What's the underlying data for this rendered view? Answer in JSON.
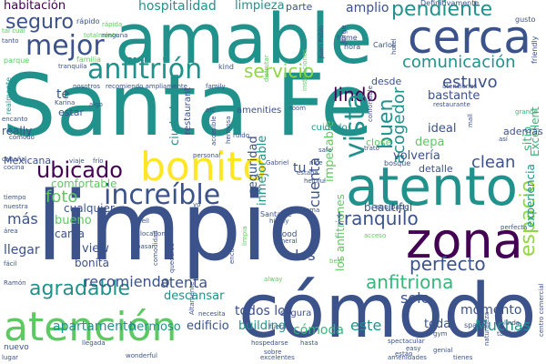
{
  "palette": {
    "dark_purple": "#440154",
    "indigo": "#3b528b",
    "blue": "#31688e",
    "teal": "#21918c",
    "green": "#35b779",
    "light_green": "#5ec962",
    "lime": "#90d743",
    "yellow": "#fde725"
  },
  "words": [
    {
      "text": "Santa Fe",
      "color": "teal"
    },
    {
      "text": "limpio",
      "color": "indigo"
    },
    {
      "text": "amable",
      "color": "teal"
    },
    {
      "text": "cómodo",
      "color": "indigo"
    },
    {
      "text": "cerca",
      "color": "indigo"
    },
    {
      "text": "zona",
      "color": "dark_purple"
    },
    {
      "text": "atento",
      "color": "teal"
    },
    {
      "text": "bonito",
      "color": "yellow"
    },
    {
      "text": "atención",
      "color": "light_green"
    },
    {
      "text": "increíble",
      "color": "indigo"
    },
    {
      "text": "mejor",
      "color": "indigo"
    },
    {
      "text": "anfitrión",
      "color": "teal"
    },
    {
      "text": "ubicado",
      "color": "dark_purple"
    },
    {
      "text": "seguro",
      "color": "indigo"
    },
    {
      "text": "pendiente",
      "color": "teal"
    },
    {
      "text": "comunicación",
      "color": "teal"
    },
    {
      "text": "servicio",
      "color": "lime"
    },
    {
      "text": "lindo",
      "color": "dark_purple"
    },
    {
      "text": "estuvo",
      "color": "indigo"
    },
    {
      "text": "vista",
      "color": "teal"
    },
    {
      "text": "buen",
      "color": "teal"
    },
    {
      "text": "acogedor",
      "color": "teal"
    },
    {
      "text": "espacio",
      "color": "lime"
    },
    {
      "text": "tranquilo",
      "color": "indigo"
    },
    {
      "text": "perfecto",
      "color": "indigo"
    },
    {
      "text": "anfitriona",
      "color": "green"
    },
    {
      "text": "agradable",
      "color": "teal"
    },
    {
      "text": "recomiendo",
      "color": "indigo"
    },
    {
      "text": "foto",
      "color": "light_green"
    },
    {
      "text": "más",
      "color": "indigo"
    },
    {
      "text": "llegar",
      "color": "indigo"
    },
    {
      "text": "solo",
      "color": "indigo"
    },
    {
      "text": "los",
      "color": "indigo"
    },
    {
      "text": "clean",
      "color": "indigo"
    },
    {
      "text": "momento",
      "color": "indigo"
    },
    {
      "text": "todos los",
      "color": "indigo"
    },
    {
      "text": "atenta",
      "color": "indigo"
    },
    {
      "text": "apartamento",
      "color": "teal"
    },
    {
      "text": "hermoso",
      "color": "teal"
    },
    {
      "text": "edificio",
      "color": "indigo"
    },
    {
      "text": "building",
      "color": "teal"
    },
    {
      "text": "cómoda",
      "color": "green"
    },
    {
      "text": "este",
      "color": "teal"
    },
    {
      "text": "toda",
      "color": "indigo"
    },
    {
      "text": "Muchas",
      "color": "teal"
    },
    {
      "text": "habitación",
      "color": "dark_purple"
    },
    {
      "text": "hospitalidad",
      "color": "teal"
    },
    {
      "text": "limpieza",
      "color": "teal"
    },
    {
      "text": "parte",
      "color": "indigo"
    },
    {
      "text": "amplio",
      "color": "indigo"
    },
    {
      "text": "ciudad",
      "color": "teal"
    },
    {
      "text": "seguridad",
      "color": "indigo"
    },
    {
      "text": "inmejorable",
      "color": "teal"
    },
    {
      "text": "cuenta",
      "color": "indigo"
    },
    {
      "text": "impecable",
      "color": "light_green"
    },
    {
      "text": "bastante",
      "color": "indigo"
    },
    {
      "text": "ideal",
      "color": "indigo"
    },
    {
      "text": "depa",
      "color": "light_green"
    },
    {
      "text": "volvería",
      "color": "indigo"
    },
    {
      "text": "detalle",
      "color": "indigo"
    },
    {
      "text": "experiencia",
      "color": "teal"
    },
    {
      "text": "Excellent",
      "color": "green"
    },
    {
      "text": "bueno",
      "color": "light_green"
    },
    {
      "text": "cama",
      "color": "indigo"
    },
    {
      "text": "view",
      "color": "indigo"
    },
    {
      "text": "bonita",
      "color": "indigo"
    },
    {
      "text": "descansar",
      "color": "teal"
    },
    {
      "text": "comfortable",
      "color": "light_green"
    },
    {
      "text": "cualquier",
      "color": "indigo"
    },
    {
      "text": "beautiful",
      "color": "indigo"
    },
    {
      "text": "los anfitriones",
      "color": "light_green"
    },
    {
      "text": "tu",
      "color": "indigo"
    },
    {
      "text": "te",
      "color": "indigo"
    },
    {
      "text": "sitio",
      "color": "green"
    },
    {
      "text": "desde",
      "color": "indigo"
    },
    {
      "text": "estar",
      "color": "indigo"
    },
    {
      "text": "restaurant",
      "color": "indigo"
    },
    {
      "text": "amenities",
      "color": "indigo"
    },
    {
      "text": "Mexicana",
      "color": "indigo"
    },
    {
      "text": "realmente",
      "color": "teal"
    },
    {
      "text": "really",
      "color": "indigo"
    },
    {
      "text": "además",
      "color": "indigo"
    },
    {
      "text": "close",
      "color": "light_green"
    },
    {
      "text": "cuidado",
      "color": "teal"
    },
    {
      "text": "segura",
      "color": "indigo"
    },
    {
      "text": "space",
      "color": "indigo"
    },
    {
      "text": "Santa Fé",
      "color": "indigo"
    },
    {
      "text": "good",
      "color": "indigo"
    },
    {
      "text": "equipado",
      "color": "indigo"
    },
    {
      "text": "Definitivamente",
      "color": "indigo"
    },
    {
      "text": "gusto",
      "color": "indigo"
    },
    {
      "text": "friendly",
      "color": "indigo"
    },
    {
      "text": "rápido",
      "color": "indigo"
    },
    {
      "text": "totalmente",
      "color": "light_green"
    },
    {
      "text": "Juan Pablo",
      "color": "indigo"
    },
    {
      "text": "Jorge",
      "color": "indigo"
    },
    {
      "text": "Carlos",
      "color": "indigo"
    },
    {
      "text": "home",
      "color": "indigo"
    },
    {
      "text": "hora",
      "color": "indigo"
    },
    {
      "text": "hotel",
      "color": "indigo"
    },
    {
      "text": "tanto",
      "color": "indigo"
    },
    {
      "text": "parque",
      "color": "light_green"
    },
    {
      "text": "familia",
      "color": "light_green"
    },
    {
      "text": "tranquila",
      "color": "indigo"
    },
    {
      "text": "kind",
      "color": "indigo"
    },
    {
      "text": "family",
      "color": "indigo"
    },
    {
      "text": "room",
      "color": "indigo"
    },
    {
      "text": "atenciones",
      "color": "indigo"
    },
    {
      "text": "restaurante",
      "color": "indigo"
    },
    {
      "text": "grande",
      "color": "green"
    },
    {
      "text": "Karina",
      "color": "indigo"
    },
    {
      "text": "algo",
      "color": "indigo"
    },
    {
      "text": "nosotros",
      "color": "indigo"
    },
    {
      "text": "recomiendo ampliamente",
      "color": "indigo"
    },
    {
      "text": "instalaciones",
      "color": "light_green"
    },
    {
      "text": "disfrutar",
      "color": "light_green"
    },
    {
      "text": "encanto",
      "color": "indigo"
    },
    {
      "text": "cómodo",
      "color": "indigo"
    },
    {
      "text": "cabaña",
      "color": "indigo"
    },
    {
      "text": "cocina",
      "color": "indigo"
    },
    {
      "text": "viaje",
      "color": "indigo"
    },
    {
      "text": "frío",
      "color": "indigo"
    },
    {
      "text": "tiempo",
      "color": "indigo"
    },
    {
      "text": "nuestra",
      "color": "indigo"
    },
    {
      "text": "área",
      "color": "indigo"
    },
    {
      "text": "fácil",
      "color": "indigo"
    },
    {
      "text": "Ramón",
      "color": "indigo"
    },
    {
      "text": "nuevo",
      "color": "indigo"
    },
    {
      "text": "lugar",
      "color": "indigo"
    },
    {
      "text": "llegada",
      "color": "indigo"
    },
    {
      "text": "wonderful",
      "color": "indigo"
    },
    {
      "text": "excelentes",
      "color": "indigo"
    },
    {
      "text": "amenidades",
      "color": "indigo"
    },
    {
      "text": "genial",
      "color": "indigo"
    },
    {
      "text": "tienes",
      "color": "indigo"
    },
    {
      "text": "spectacular",
      "color": "indigo"
    },
    {
      "text": "hasta",
      "color": "indigo"
    },
    {
      "text": "fuera",
      "color": "indigo"
    },
    {
      "text": "hospedarse",
      "color": "indigo"
    },
    {
      "text": "sobre",
      "color": "indigo"
    },
    {
      "text": "highly",
      "color": "indigo"
    },
    {
      "text": "general",
      "color": "indigo"
    },
    {
      "text": "best",
      "color": "light_green"
    },
    {
      "text": "acceso",
      "color": "light_green"
    },
    {
      "text": "limpia",
      "color": "light_green"
    },
    {
      "text": "alway",
      "color": "light_green"
    },
    {
      "text": "encuentra",
      "color": "indigo"
    },
    {
      "text": "quedarse",
      "color": "indigo"
    },
    {
      "text": "accesible",
      "color": "indigo"
    },
    {
      "text": "hermosa",
      "color": "indigo"
    },
    {
      "text": "ruido",
      "color": "indigo"
    },
    {
      "text": "personal",
      "color": "indigo"
    },
    {
      "text": "Gabriel",
      "color": "indigo"
    },
    {
      "text": "estaba",
      "color": "indigo"
    },
    {
      "text": "helpful",
      "color": "indigo"
    },
    {
      "text": "trato",
      "color": "indigo"
    },
    {
      "text": "bosque",
      "color": "indigo"
    },
    {
      "text": "nice",
      "color": "indigo"
    },
    {
      "text": "safe",
      "color": "indigo"
    },
    {
      "text": "mall",
      "color": "indigo"
    },
    {
      "text": "así",
      "color": "indigo"
    },
    {
      "text": "perfecta",
      "color": "indigo"
    },
    {
      "text": "centro comercial",
      "color": "indigo"
    },
    {
      "text": "naturaleza",
      "color": "indigo"
    },
    {
      "text": "linda",
      "color": "indigo"
    },
    {
      "text": "gym",
      "color": "indigo"
    },
    {
      "text": "también",
      "color": "indigo"
    },
    {
      "text": "easy",
      "color": "indigo"
    },
    {
      "text": "están",
      "color": "indigo"
    },
    {
      "text": "Altamente",
      "color": "indigo"
    },
    {
      "text": "necesita",
      "color": "indigo"
    },
    {
      "text": "comodidad",
      "color": "indigo"
    },
    {
      "text": "pasar",
      "color": "indigo"
    },
    {
      "text": "well",
      "color": "indigo"
    },
    {
      "text": "location",
      "color": "indigo"
    },
    {
      "text": "problema",
      "color": "indigo"
    },
    {
      "text": "yo",
      "color": "indigo"
    },
    {
      "text": "etc",
      "color": "indigo"
    },
    {
      "text": "confortable",
      "color": "indigo"
    },
    {
      "text": "ninguna",
      "color": "indigo"
    },
    {
      "text": "tal cual",
      "color": "light_green"
    },
    {
      "text": "rápida",
      "color": "light_green"
    }
  ]
}
